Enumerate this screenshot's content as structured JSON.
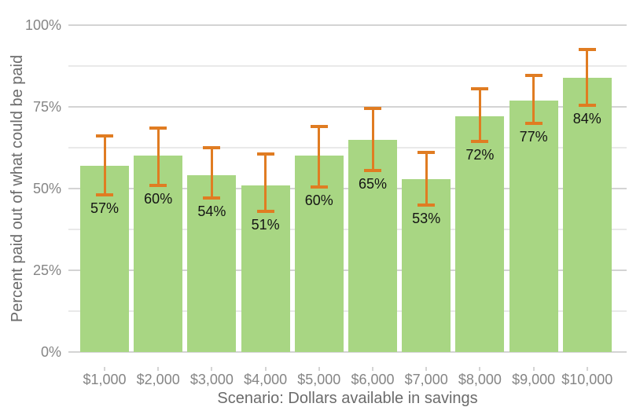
{
  "chart_data": {
    "type": "bar",
    "title": "",
    "xlabel": "Scenario: Dollars available in savings",
    "ylabel": "Percent paid out of what could be paid",
    "categories": [
      "$1,000",
      "$2,000",
      "$3,000",
      "$4,000",
      "$5,000",
      "$6,000",
      "$7,000",
      "$8,000",
      "$9,000",
      "$10,000"
    ],
    "values": [
      57,
      60,
      54,
      51,
      60,
      65,
      53,
      72,
      77,
      84
    ],
    "bar_labels": [
      "57%",
      "60%",
      "54%",
      "51%",
      "60%",
      "65%",
      "53%",
      "72%",
      "77%",
      "84%"
    ],
    "error_bars": {
      "low": [
        48,
        51,
        47,
        43,
        50.5,
        55.5,
        45,
        64.5,
        70,
        75.5
      ],
      "high": [
        66,
        68.5,
        62.5,
        60.5,
        69,
        74.5,
        61,
        80.5,
        84.5,
        92.5
      ]
    },
    "yticks": [
      {
        "value": 0,
        "label": "0%"
      },
      {
        "value": 25,
        "label": "25%"
      },
      {
        "value": 50,
        "label": "50%"
      },
      {
        "value": 75,
        "label": "75%"
      },
      {
        "value": 100,
        "label": "100%"
      }
    ],
    "minor_gridlines": [
      12.5,
      37.5,
      62.5,
      87.5
    ],
    "ylim": [
      0,
      100
    ],
    "grid": true,
    "legend": "none",
    "colors": {
      "bar": "#a8d683",
      "error_bar": "#e07c22",
      "grid_major": "#d4d4d4",
      "grid_minor": "#e9e9e9",
      "tick_text": "#858585",
      "axis_title_text": "#6b6b6b",
      "bar_label_text": "#141414",
      "background": "#ffffff"
    }
  }
}
